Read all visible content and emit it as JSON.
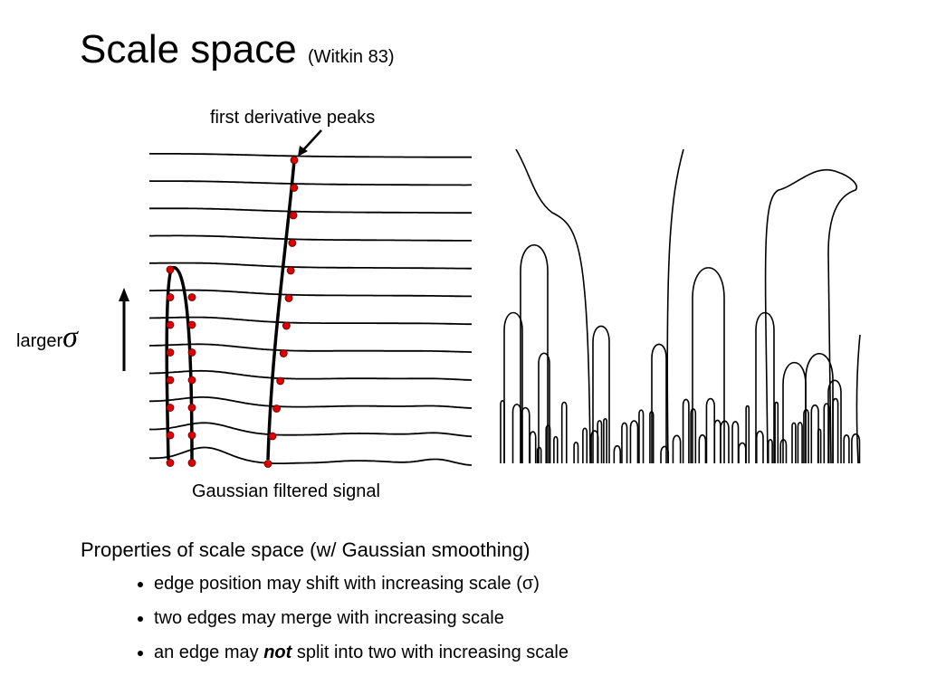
{
  "title": {
    "main": "Scale space",
    "citation": "(Witkin 83)"
  },
  "figure": {
    "peaks_label": "first derivative peaks",
    "scale_label": "larger",
    "sigma": "σ",
    "signal_label": "Gaussian filtered signal"
  },
  "properties": {
    "heading": "Properties of scale space (w/ Gaussian smoothing)",
    "bullets": [
      [
        "edge position may shift with increasing scale (σ)"
      ],
      [
        "two edges may merge with increasing scale"
      ],
      [
        "an edge may ",
        "not",
        " split into two with increasing scale"
      ]
    ]
  }
}
